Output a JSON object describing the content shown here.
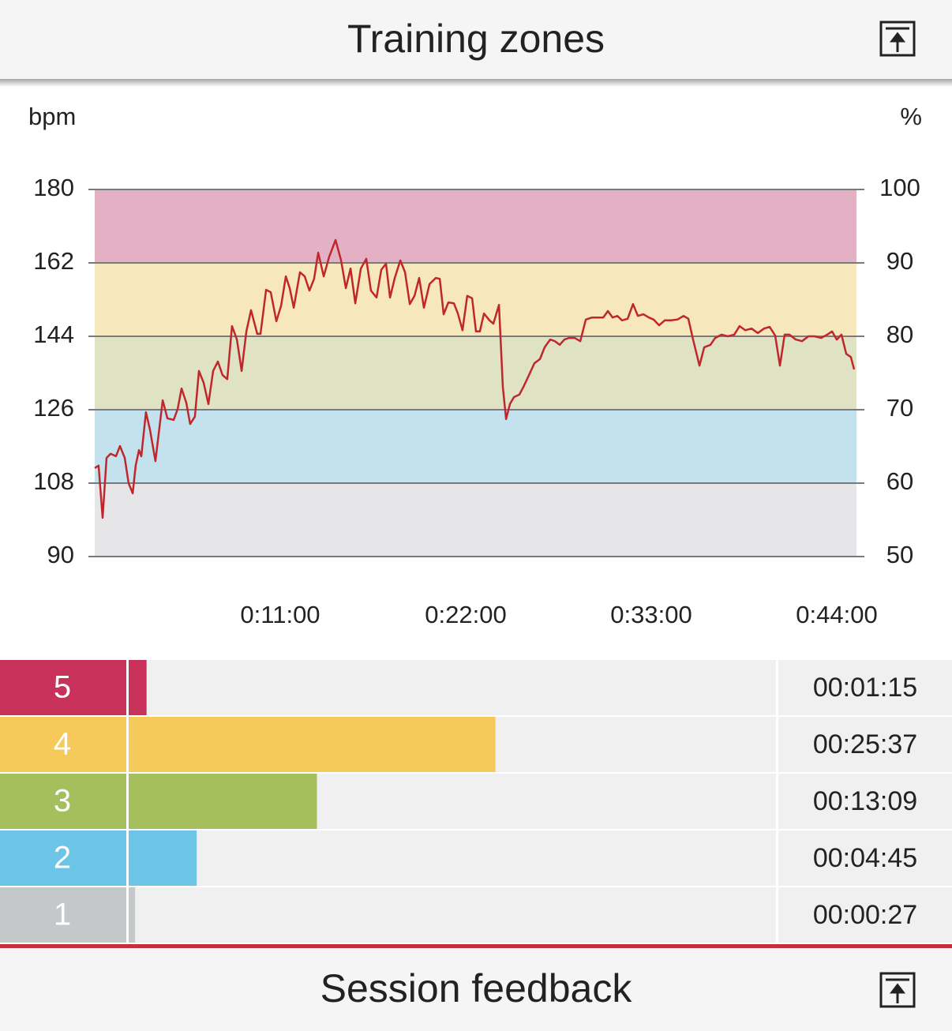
{
  "header": {
    "title": "Training zones"
  },
  "chart_data": [
    {
      "type": "line",
      "y_label": "bpm",
      "y2_label": "%",
      "color": "#c0272d",
      "band_colors": [
        "#e6e6e8",
        "#c4e2ee",
        "#dfe3c3",
        "#f6e8bc",
        "#e3b0c4"
      ],
      "grid": true,
      "xlim": [
        0,
        45.17
      ],
      "xticks": [
        {
          "value": 11,
          "label": "0:11:00"
        },
        {
          "value": 22,
          "label": "0:22:00"
        },
        {
          "value": 33,
          "label": "0:33:00"
        },
        {
          "value": 44,
          "label": "0:44:00"
        }
      ],
      "ylim": [
        90,
        180
      ],
      "yticks": [
        90,
        108,
        126,
        144,
        162,
        180
      ],
      "y2lim": [
        50,
        100
      ],
      "y2ticks": [
        50,
        60,
        70,
        80,
        90,
        100
      ],
      "x": [
        0,
        0.23,
        0.47,
        0.7,
        0.94,
        1.26,
        1.5,
        1.78,
        2.01,
        2.25,
        2.43,
        2.62,
        2.76,
        3.04,
        3.28,
        3.6,
        4.03,
        4.31,
        4.68,
        4.92,
        5.15,
        5.43,
        5.66,
        5.94,
        6.18,
        6.46,
        6.74,
        7.02,
        7.3,
        7.58,
        7.86,
        8.14,
        8.43,
        8.71,
        8.99,
        9.27,
        9.64,
        9.83,
        10.16,
        10.44,
        10.77,
        11.05,
        11.33,
        11.56,
        11.8,
        12.17,
        12.45,
        12.73,
        13.01,
        13.25,
        13.58,
        13.9,
        14.28,
        14.61,
        14.89,
        15.17,
        15.45,
        15.78,
        16.1,
        16.38,
        16.71,
        16.99,
        17.27,
        17.51,
        17.79,
        18.12,
        18.4,
        18.68,
        18.96,
        19.24,
        19.52,
        19.85,
        20.22,
        20.46,
        20.69,
        20.97,
        21.3,
        21.53,
        21.81,
        22.09,
        22.38,
        22.61,
        22.84,
        23.08,
        23.41,
        23.64,
        23.97,
        24.2,
        24.39,
        24.62,
        24.86,
        25.18,
        25.42,
        25.75,
        26.07,
        26.4,
        26.68,
        27.01,
        27.29,
        27.57,
        27.85,
        28.13,
        28.46,
        28.79,
        29.12,
        29.49,
        29.82,
        30.15,
        30.43,
        30.71,
        30.99,
        31.27,
        31.6,
        31.92,
        32.21,
        32.53,
        32.86,
        33.14,
        33.47,
        33.8,
        34.17,
        34.55,
        34.92,
        35.2,
        35.48,
        35.86,
        36.14,
        36.51,
        36.79,
        37.17,
        37.54,
        37.92,
        38.24,
        38.57,
        38.95,
        39.32,
        39.69,
        40.02,
        40.35,
        40.63,
        40.91,
        41.19,
        41.57,
        41.94,
        42.32,
        42.69,
        43.07,
        43.44,
        43.72,
        44.0,
        44.28,
        44.56,
        44.84,
        45.03
      ],
      "values": [
        111.7,
        112.3,
        99.5,
        114.2,
        115.2,
        114.6,
        117.1,
        114.2,
        108.0,
        105.5,
        112.3,
        116.1,
        114.6,
        125.4,
        121.0,
        113.4,
        128.3,
        123.9,
        123.5,
        126.2,
        131.2,
        127.7,
        122.5,
        124.3,
        135.5,
        132.6,
        127.4,
        135.5,
        137.8,
        134.5,
        133.5,
        146.5,
        143.2,
        135.5,
        145.2,
        150.4,
        144.6,
        144.6,
        155.4,
        154.8,
        147.7,
        151.5,
        158.7,
        155.8,
        151.0,
        159.7,
        158.7,
        155.2,
        158.1,
        164.5,
        158.7,
        163.5,
        167.6,
        162.6,
        155.8,
        160.6,
        152.1,
        160.6,
        163.0,
        155.2,
        153.5,
        160.3,
        161.8,
        153.5,
        158.3,
        162.6,
        159.7,
        151.9,
        153.9,
        158.3,
        151.0,
        156.8,
        158.3,
        158.1,
        149.4,
        152.3,
        152.1,
        149.6,
        145.5,
        153.9,
        153.3,
        145.2,
        145.2,
        149.6,
        147.9,
        147.1,
        151.7,
        131.6,
        123.7,
        127.4,
        129.1,
        129.7,
        131.6,
        134.5,
        137.4,
        138.4,
        141.3,
        143.2,
        142.8,
        141.9,
        143.2,
        143.6,
        143.6,
        142.8,
        148.1,
        148.6,
        148.6,
        148.6,
        150.2,
        148.6,
        149.0,
        147.9,
        148.3,
        151.9,
        149.0,
        149.4,
        148.6,
        148.1,
        146.7,
        147.9,
        147.9,
        148.1,
        149.0,
        148.3,
        143.2,
        136.8,
        141.3,
        141.9,
        143.6,
        144.4,
        144.0,
        144.4,
        146.5,
        145.5,
        145.9,
        144.8,
        145.9,
        146.3,
        144.2,
        136.8,
        144.4,
        144.4,
        143.2,
        142.8,
        144.0,
        144.0,
        143.6,
        144.4,
        145.2,
        143.2,
        144.4,
        139.7,
        138.9,
        135.9
      ]
    },
    {
      "type": "bar",
      "categories": [
        "5",
        "4",
        "3",
        "2",
        "1"
      ],
      "values": [
        75,
        1537,
        789,
        285,
        27
      ],
      "value_labels": [
        "00:01:15",
        "00:25:37",
        "00:13:09",
        "00:04:45",
        "00:00:27"
      ],
      "colors": [
        "#c8325a",
        "#f5c95a",
        "#a4bf5c",
        "#6cc4e6",
        "#c4c8c8"
      ]
    }
  ],
  "footer": {
    "title": "Session feedback"
  }
}
